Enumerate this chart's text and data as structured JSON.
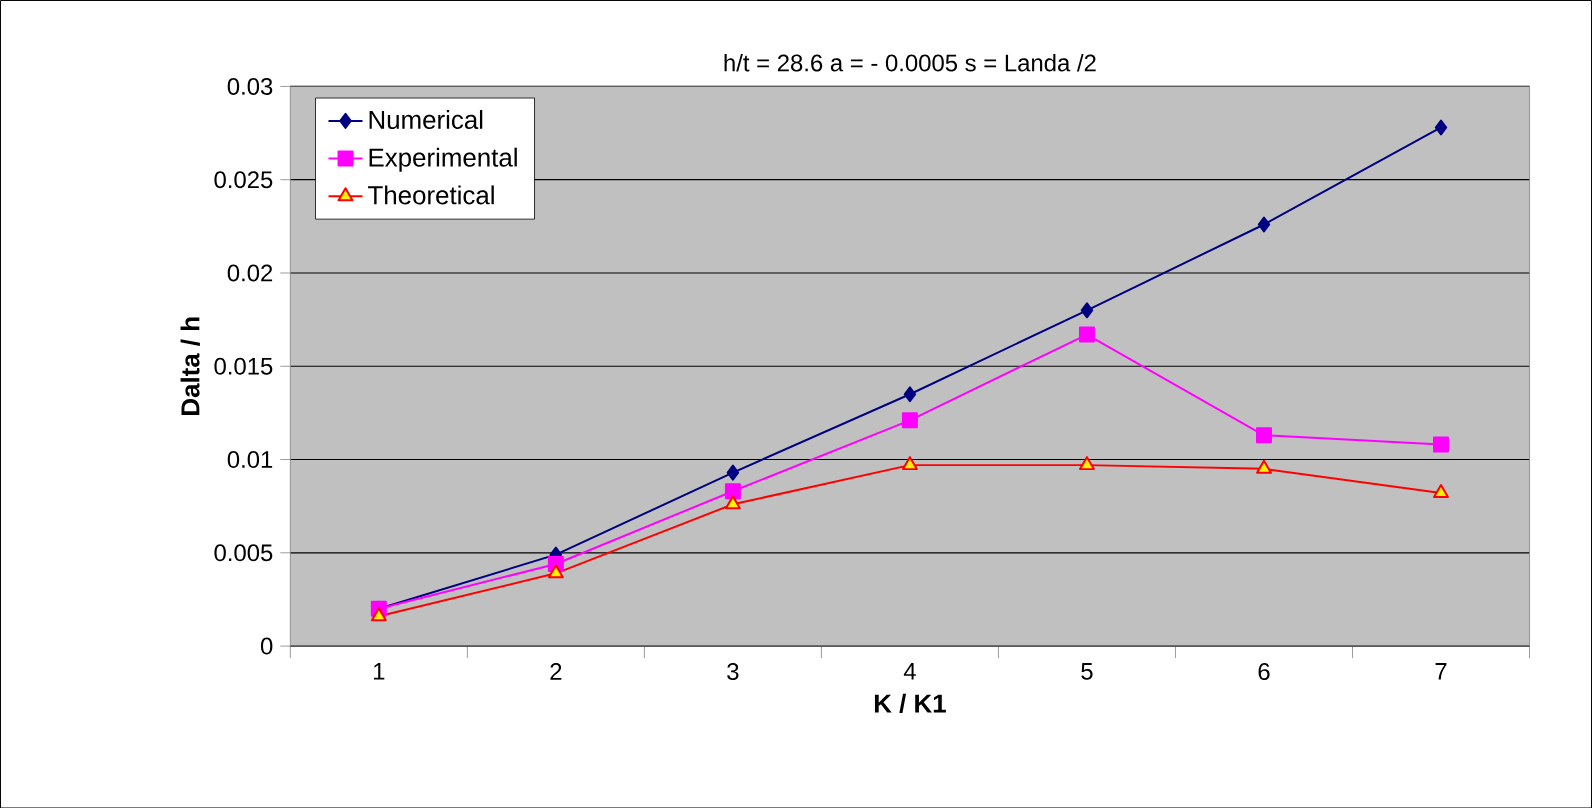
{
  "chart_data": {
    "type": "line",
    "title": "h/t = 28.6     a = - 0.0005    s =  Landa /2",
    "xlabel": "K / K1",
    "ylabel": "Dalta / h",
    "categories": [
      "1",
      "2",
      "3",
      "4",
      "5",
      "6",
      "7"
    ],
    "ylim": [
      0,
      0.03
    ],
    "yticks": [
      0,
      0.005,
      0.01,
      0.015,
      0.02,
      0.025,
      0.03
    ],
    "grid": "y",
    "legend": "top left",
    "series": [
      {
        "name": "Numerical",
        "color": "#000080",
        "marker": "diamond",
        "values": [
          0.002,
          0.0049,
          0.0093,
          0.0135,
          0.018,
          0.0226,
          0.0278
        ]
      },
      {
        "name": "Experimental",
        "color": "#ff00ff",
        "marker": "square",
        "values": [
          0.002,
          0.0044,
          0.0083,
          0.0121,
          0.0167,
          0.0113,
          0.0108
        ]
      },
      {
        "name": "Theoretical",
        "color": "#ff0000",
        "marker": "triangle",
        "values": [
          0.0016,
          0.0039,
          0.0076,
          0.0097,
          0.0097,
          0.0095,
          0.0082
        ]
      }
    ]
  }
}
